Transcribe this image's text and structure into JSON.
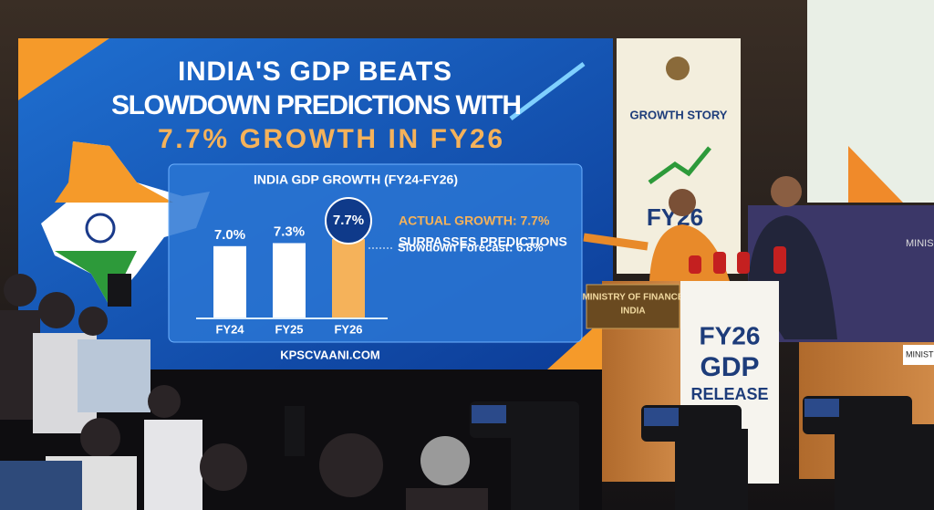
{
  "screen": {
    "headline": [
      "INDIA'S GDP BEATS",
      "SLOWDOWN PREDICTIONS WITH",
      "7.7% GROWTH IN FY26"
    ],
    "footer": "KPSCVAANI.COM"
  },
  "chart_data": {
    "type": "bar",
    "title": "INDIA GDP GROWTH (FY24-FY26)",
    "categories": [
      "FY24",
      "FY25",
      "FY26"
    ],
    "values": [
      7.0,
      7.3,
      7.7
    ],
    "value_labels": [
      "7.0%",
      "7.3%",
      "7.7%"
    ],
    "colors": [
      "#ffffff",
      "#ffffff",
      "#f5b25a"
    ],
    "highlight": 2,
    "annotation": [
      "ACTUAL GROWTH: 7.7%",
      "SURPASSES PREDICTIONS"
    ],
    "forecast": {
      "value": 6.8,
      "label": "Slowdown Forecast: 6.8%"
    }
  },
  "banner": {
    "title": "GROWTH STORY",
    "subtitle": "FY26"
  },
  "podium": {
    "plaque": [
      "MINISTRY OF FINANCE",
      "INDIA"
    ],
    "sign": [
      "FY26",
      "GDP",
      "RELEASE"
    ]
  },
  "backdrop": {
    "text": "MINIS",
    "nameplate": "MINISTRY"
  }
}
